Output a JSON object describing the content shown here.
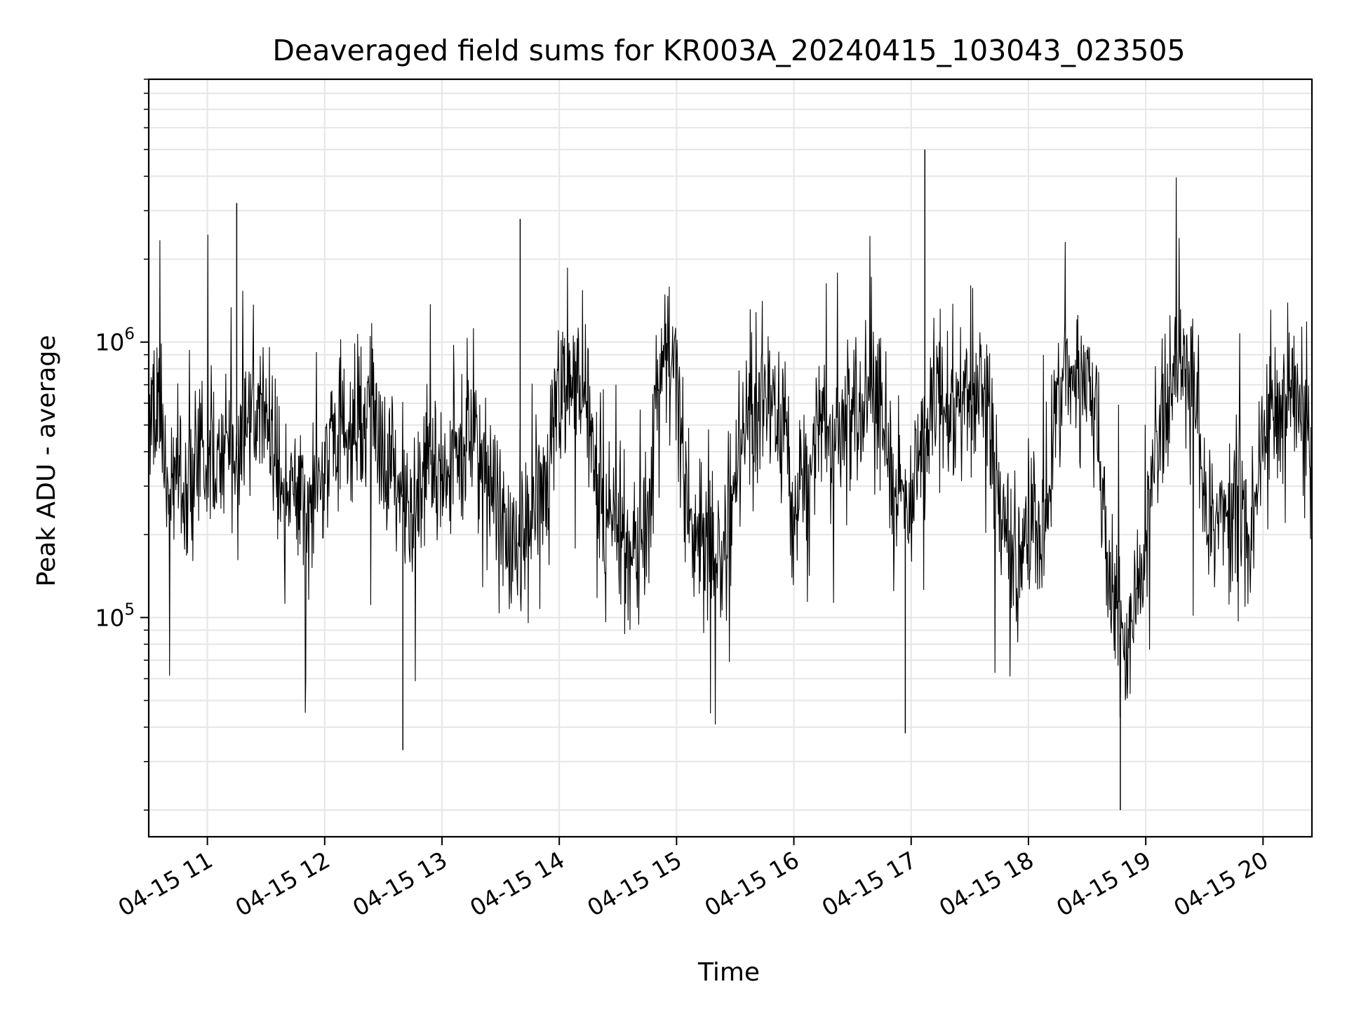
{
  "chart_data": {
    "type": "line",
    "title": "Deaveraged field sums for KR003A_20240415_103043_023505",
    "xlabel": "Time",
    "ylabel": "Peak ADU - average",
    "x_is_time": true,
    "x_date": "2024-04-15",
    "xlim": [
      "2024-04-15 10:30",
      "2024-04-15 20:25"
    ],
    "yscale": "log",
    "ylim": [
      16000,
      9000000
    ],
    "x_ticks": [
      {
        "t": "2024-04-15 11:00",
        "label": "04-15 11"
      },
      {
        "t": "2024-04-15 12:00",
        "label": "04-15 12"
      },
      {
        "t": "2024-04-15 13:00",
        "label": "04-15 13"
      },
      {
        "t": "2024-04-15 14:00",
        "label": "04-15 14"
      },
      {
        "t": "2024-04-15 15:00",
        "label": "04-15 15"
      },
      {
        "t": "2024-04-15 16:00",
        "label": "04-15 16"
      },
      {
        "t": "2024-04-15 17:00",
        "label": "04-15 17"
      },
      {
        "t": "2024-04-15 18:00",
        "label": "04-15 18"
      },
      {
        "t": "2024-04-15 19:00",
        "label": "04-15 19"
      },
      {
        "t": "2024-04-15 20:00",
        "label": "04-15 20"
      }
    ],
    "y_major_ticks": [
      {
        "value": 100000,
        "base": "10",
        "exp": "5"
      },
      {
        "value": 1000000,
        "base": "10",
        "exp": "6"
      }
    ],
    "grid": true,
    "line_color": "#000000",
    "grid_color": "#e6e6e6",
    "series": [
      {
        "values": [
          [
            "2024-04-15 10:30",
            420000
          ],
          [
            "2024-04-15 10:35",
            650000
          ],
          [
            "2024-04-15 10:40",
            300000
          ],
          [
            "2024-04-15 10:45",
            380000
          ],
          [
            "2024-04-15 10:50",
            250000
          ],
          [
            "2024-04-15 10:55",
            450000
          ],
          [
            "2024-04-15 11:00",
            350000
          ],
          [
            "2024-04-15 11:05",
            400000
          ],
          [
            "2024-04-15 11:10",
            500000
          ],
          [
            "2024-04-15 11:15",
            420000
          ],
          [
            "2024-04-15 11:20",
            480000
          ],
          [
            "2024-04-15 11:25",
            550000
          ],
          [
            "2024-04-15 11:30",
            600000
          ],
          [
            "2024-04-15 11:35",
            380000
          ],
          [
            "2024-04-15 11:40",
            250000
          ],
          [
            "2024-04-15 11:45",
            300000
          ],
          [
            "2024-04-15 11:50",
            200000
          ],
          [
            "2024-04-15 11:55",
            320000
          ],
          [
            "2024-04-15 12:00",
            380000
          ],
          [
            "2024-04-15 12:05",
            420000
          ],
          [
            "2024-04-15 12:10",
            450000
          ],
          [
            "2024-04-15 12:15",
            480000
          ],
          [
            "2024-04-15 12:20",
            500000
          ],
          [
            "2024-04-15 12:25",
            520000
          ],
          [
            "2024-04-15 12:30",
            400000
          ],
          [
            "2024-04-15 12:35",
            320000
          ],
          [
            "2024-04-15 12:40",
            280000
          ],
          [
            "2024-04-15 12:45",
            250000
          ],
          [
            "2024-04-15 12:50",
            300000
          ],
          [
            "2024-04-15 12:55",
            350000
          ],
          [
            "2024-04-15 13:00",
            320000
          ],
          [
            "2024-04-15 13:05",
            380000
          ],
          [
            "2024-04-15 13:10",
            420000
          ],
          [
            "2024-04-15 13:15",
            450000
          ],
          [
            "2024-04-15 13:20",
            400000
          ],
          [
            "2024-04-15 13:25",
            300000
          ],
          [
            "2024-04-15 13:30",
            220000
          ],
          [
            "2024-04-15 13:35",
            200000
          ],
          [
            "2024-04-15 13:40",
            180000
          ],
          [
            "2024-04-15 13:45",
            250000
          ],
          [
            "2024-04-15 13:50",
            300000
          ],
          [
            "2024-04-15 13:55",
            400000
          ],
          [
            "2024-04-15 14:00",
            600000
          ],
          [
            "2024-04-15 14:05",
            700000
          ],
          [
            "2024-04-15 14:10",
            650000
          ],
          [
            "2024-04-15 14:15",
            550000
          ],
          [
            "2024-04-15 14:20",
            300000
          ],
          [
            "2024-04-15 14:25",
            250000
          ],
          [
            "2024-04-15 14:30",
            200000
          ],
          [
            "2024-04-15 14:35",
            180000
          ],
          [
            "2024-04-15 14:40",
            160000
          ],
          [
            "2024-04-15 14:45",
            170000
          ],
          [
            "2024-04-15 14:50",
            750000
          ],
          [
            "2024-04-15 14:55",
            950000
          ],
          [
            "2024-04-15 15:00",
            900000
          ],
          [
            "2024-04-15 15:05",
            250000
          ],
          [
            "2024-04-15 15:10",
            200000
          ],
          [
            "2024-04-15 15:15",
            180000
          ],
          [
            "2024-04-15 15:20",
            160000
          ],
          [
            "2024-04-15 15:25",
            180000
          ],
          [
            "2024-04-15 15:30",
            350000
          ],
          [
            "2024-04-15 15:35",
            450000
          ],
          [
            "2024-04-15 15:40",
            550000
          ],
          [
            "2024-04-15 15:45",
            700000
          ],
          [
            "2024-04-15 15:50",
            650000
          ],
          [
            "2024-04-15 15:55",
            500000
          ],
          [
            "2024-04-15 16:00",
            250000
          ],
          [
            "2024-04-15 16:05",
            300000
          ],
          [
            "2024-04-15 16:10",
            400000
          ],
          [
            "2024-04-15 16:15",
            550000
          ],
          [
            "2024-04-15 16:20",
            450000
          ],
          [
            "2024-04-15 16:25",
            500000
          ],
          [
            "2024-04-15 16:30",
            600000
          ],
          [
            "2024-04-15 16:35",
            650000
          ],
          [
            "2024-04-15 16:40",
            700000
          ],
          [
            "2024-04-15 16:45",
            600000
          ],
          [
            "2024-04-15 16:50",
            350000
          ],
          [
            "2024-04-15 16:55",
            300000
          ],
          [
            "2024-04-15 17:00",
            250000
          ],
          [
            "2024-04-15 17:05",
            400000
          ],
          [
            "2024-04-15 17:10",
            650000
          ],
          [
            "2024-04-15 17:15",
            600000
          ],
          [
            "2024-04-15 17:20",
            550000
          ],
          [
            "2024-04-15 17:25",
            650000
          ],
          [
            "2024-04-15 17:30",
            600000
          ],
          [
            "2024-04-15 17:35",
            700000
          ],
          [
            "2024-04-15 17:40",
            550000
          ],
          [
            "2024-04-15 17:45",
            250000
          ],
          [
            "2024-04-15 17:50",
            200000
          ],
          [
            "2024-04-15 17:55",
            180000
          ],
          [
            "2024-04-15 18:00",
            230000
          ],
          [
            "2024-04-15 18:05",
            200000
          ],
          [
            "2024-04-15 18:10",
            220000
          ],
          [
            "2024-04-15 18:15",
            700000
          ],
          [
            "2024-04-15 18:20",
            750000
          ],
          [
            "2024-04-15 18:25",
            650000
          ],
          [
            "2024-04-15 18:30",
            700000
          ],
          [
            "2024-04-15 18:35",
            600000
          ],
          [
            "2024-04-15 18:40",
            150000
          ],
          [
            "2024-04-15 18:45",
            100000
          ],
          [
            "2024-04-15 18:50",
            70000
          ],
          [
            "2024-04-15 18:55",
            130000
          ],
          [
            "2024-04-15 19:00",
            180000
          ],
          [
            "2024-04-15 19:05",
            450000
          ],
          [
            "2024-04-15 19:10",
            600000
          ],
          [
            "2024-04-15 19:15",
            800000
          ],
          [
            "2024-04-15 19:20",
            900000
          ],
          [
            "2024-04-15 19:25",
            700000
          ],
          [
            "2024-04-15 19:30",
            250000
          ],
          [
            "2024-04-15 19:35",
            200000
          ],
          [
            "2024-04-15 19:40",
            220000
          ],
          [
            "2024-04-15 19:45",
            300000
          ],
          [
            "2024-04-15 19:50",
            250000
          ],
          [
            "2024-04-15 19:55",
            200000
          ],
          [
            "2024-04-15 20:00",
            450000
          ],
          [
            "2024-04-15 20:05",
            650000
          ],
          [
            "2024-04-15 20:10",
            550000
          ],
          [
            "2024-04-15 20:15",
            600000
          ],
          [
            "2024-04-15 20:20",
            500000
          ],
          [
            "2024-04-15 20:25",
            450000
          ]
        ]
      }
    ],
    "annotations": [
      {
        "t": "2024-04-15 11:15",
        "value": 3200000,
        "kind": "spike"
      },
      {
        "t": "2024-04-15 12:40",
        "value": 33000,
        "kind": "dip"
      },
      {
        "t": "2024-04-15 13:40",
        "value": 2800000,
        "kind": "spike"
      },
      {
        "t": "2024-04-15 16:57",
        "value": 38000,
        "kind": "dip"
      },
      {
        "t": "2024-04-15 17:07",
        "value": 5000000,
        "kind": "spike"
      },
      {
        "t": "2024-04-15 18:47",
        "value": 20000,
        "kind": "dip"
      }
    ]
  }
}
